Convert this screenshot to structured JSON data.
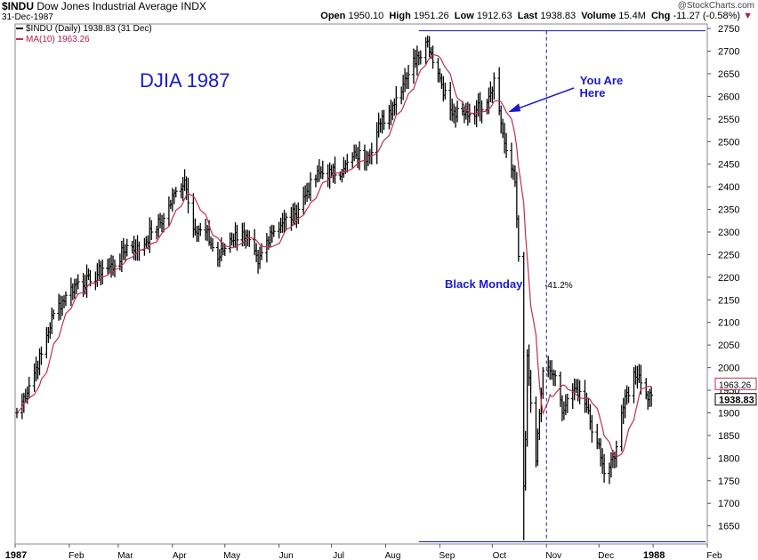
{
  "header": {
    "symbol": "$INDU",
    "name": "Dow Jones Industrial Average",
    "exchange": "INDX",
    "date": "31-Dec-1987",
    "credit": "@StockCharts.com",
    "open_label": "Open",
    "open": "1950.10",
    "high_label": "High",
    "high": "1951.26",
    "low_label": "Low",
    "low": "1912.63",
    "last_label": "Last",
    "last": "1938.83",
    "volume_label": "Volume",
    "volume": "15.4M",
    "chg_label": "Chg",
    "chg": "-11.27 (-0.58%)"
  },
  "legend": {
    "price": "$INDU (Daily) 1938.83 (31 Dec)",
    "ma": "MA(10) 1963.26"
  },
  "colors": {
    "price": "#000000",
    "ma": "#c0304f",
    "annotation": "#1a1acc",
    "hline": "#1a1a99"
  },
  "chart_data": {
    "type": "ohlc",
    "title": "DJIA 1987",
    "x_range": [
      "1987-01-01",
      "1988-02-01"
    ],
    "ylim": [
      1610,
      2760
    ],
    "y_ticks": [
      1650,
      1700,
      1750,
      1800,
      1850,
      1900,
      1950,
      2000,
      2050,
      2100,
      2150,
      2200,
      2250,
      2300,
      2350,
      2400,
      2450,
      2500,
      2550,
      2600,
      2650,
      2700,
      2750
    ],
    "x_ticks": [
      {
        "label": "1987",
        "date": "1987-01-01",
        "bold": true
      },
      {
        "label": "Feb",
        "date": "1987-02-01"
      },
      {
        "label": "Mar",
        "date": "1987-03-01"
      },
      {
        "label": "Apr",
        "date": "1987-04-01"
      },
      {
        "label": "May",
        "date": "1987-05-01"
      },
      {
        "label": "Jun",
        "date": "1987-06-01"
      },
      {
        "label": "Jul",
        "date": "1987-07-01"
      },
      {
        "label": "Aug",
        "date": "1987-08-01"
      },
      {
        "label": "Sep",
        "date": "1987-09-01"
      },
      {
        "label": "Oct",
        "date": "1987-10-01"
      },
      {
        "label": "Nov",
        "date": "1987-11-01"
      },
      {
        "label": "Dec",
        "date": "1987-12-01"
      },
      {
        "label": "1988",
        "date": "1988-01-01",
        "bold": true
      },
      {
        "label": "Feb",
        "date": "1988-02-01"
      }
    ],
    "price_anchors": [
      [
        "1987-01-02",
        1900
      ],
      [
        "1987-01-09",
        1960
      ],
      [
        "1987-01-16",
        2030
      ],
      [
        "1987-01-23",
        2120
      ],
      [
        "1987-01-30",
        2160
      ],
      [
        "1987-02-06",
        2190
      ],
      [
        "1987-02-13",
        2190
      ],
      [
        "1987-02-20",
        2220
      ],
      [
        "1987-02-27",
        2225
      ],
      [
        "1987-03-06",
        2270
      ],
      [
        "1987-03-13",
        2260
      ],
      [
        "1987-03-20",
        2300
      ],
      [
        "1987-03-27",
        2330
      ],
      [
        "1987-04-03",
        2390
      ],
      [
        "1987-04-08",
        2415
      ],
      [
        "1987-04-14",
        2300
      ],
      [
        "1987-04-20",
        2300
      ],
      [
        "1987-04-27",
        2240
      ],
      [
        "1987-05-04",
        2285
      ],
      [
        "1987-05-11",
        2300
      ],
      [
        "1987-05-20",
        2230
      ],
      [
        "1987-05-27",
        2300
      ],
      [
        "1987-06-03",
        2320
      ],
      [
        "1987-06-10",
        2340
      ],
      [
        "1987-06-17",
        2390
      ],
      [
        "1987-06-24",
        2430
      ],
      [
        "1987-07-01",
        2430
      ],
      [
        "1987-07-08",
        2440
      ],
      [
        "1987-07-15",
        2470
      ],
      [
        "1987-07-22",
        2470
      ],
      [
        "1987-07-29",
        2540
      ],
      [
        "1987-08-05",
        2580
      ],
      [
        "1987-08-12",
        2640
      ],
      [
        "1987-08-19",
        2690
      ],
      [
        "1987-08-25",
        2722
      ],
      [
        "1987-09-01",
        2640
      ],
      [
        "1987-09-08",
        2560
      ],
      [
        "1987-09-15",
        2560
      ],
      [
        "1987-09-22",
        2570
      ],
      [
        "1987-09-29",
        2600
      ],
      [
        "1987-10-02",
        2640
      ],
      [
        "1987-10-06",
        2540
      ],
      [
        "1987-10-09",
        2480
      ],
      [
        "1987-10-14",
        2410
      ],
      [
        "1987-10-16",
        2246
      ],
      [
        "1987-10-19",
        1738
      ],
      [
        "1987-10-20",
        1841
      ],
      [
        "1987-10-21",
        2027
      ],
      [
        "1987-10-26",
        1793
      ],
      [
        "1987-10-30",
        1993
      ],
      [
        "1987-11-05",
        1985
      ],
      [
        "1987-11-10",
        1900
      ],
      [
        "1987-11-16",
        1950
      ],
      [
        "1987-11-23",
        1920
      ],
      [
        "1987-11-30",
        1833
      ],
      [
        "1987-12-04",
        1766
      ],
      [
        "1987-12-10",
        1800
      ],
      [
        "1987-12-14",
        1900
      ],
      [
        "1987-12-21",
        1990
      ],
      [
        "1987-12-28",
        1940
      ],
      [
        "1987-12-31",
        1938.83
      ]
    ],
    "ma_period": 10,
    "annotations": {
      "label_title": "DJIA 1987",
      "you_are_here": [
        "You Are",
        "Here"
      ],
      "black_monday": "Black Monday",
      "decline": "-41.2%",
      "dashed_date": "1987-11-01",
      "arrow_target": [
        "1987-10-07",
        2565
      ],
      "high_line": 2745,
      "low_line": 1615,
      "hline_start": "1987-08-20",
      "hline_end": "1988-01-31"
    },
    "price_label": "1938.83",
    "ma_label": "1963.26"
  }
}
